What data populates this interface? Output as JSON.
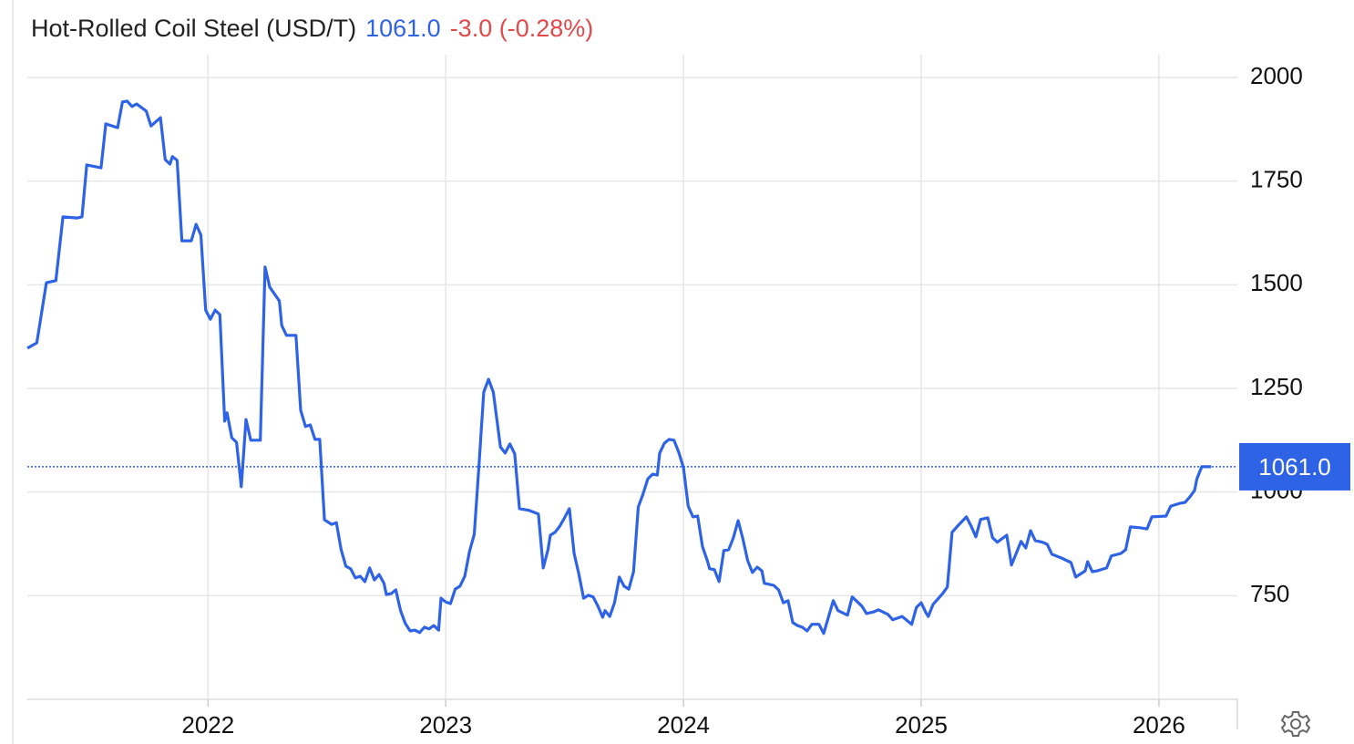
{
  "chart_data": {
    "type": "line",
    "title": "Hot-Rolled Coil Steel (USD/T)",
    "change": "-3.0 (-0.28%)",
    "last_value": {
      "value": 1061,
      "label": "1061.0"
    },
    "xlim": [
      2021.24,
      2026.33
    ],
    "ylim": [
      500,
      2055
    ],
    "xticks": [
      2022,
      2023,
      2024,
      2025,
      2026
    ],
    "yticks": [
      750,
      1000,
      1250,
      1500,
      1750,
      2000
    ],
    "grid": true,
    "series": [
      {
        "color": "#2f63e6",
        "x": [
          2021.24,
          2021.28,
          2021.32,
          2021.36,
          2021.39,
          2021.45,
          2021.47,
          2021.49,
          2021.55,
          2021.57,
          2021.62,
          2021.64,
          2021.66,
          2021.68,
          2021.7,
          2021.74,
          2021.76,
          2021.8,
          2021.82,
          2021.84,
          2021.85,
          2021.87,
          2021.89,
          2021.93,
          2021.95,
          2021.97,
          2021.99,
          2022.01,
          2022.03,
          2022.05,
          2022.07,
          2022.08,
          2022.1,
          2022.12,
          2022.14,
          2022.16,
          2022.18,
          2022.22,
          2022.24,
          2022.26,
          2022.3,
          2022.31,
          2022.33,
          2022.37,
          2022.39,
          2022.41,
          2022.43,
          2022.45,
          2022.47,
          2022.49,
          2022.52,
          2022.54,
          2022.56,
          2022.58,
          2022.6,
          2022.62,
          2022.64,
          2022.66,
          2022.68,
          2022.7,
          2022.72,
          2022.74,
          2022.75,
          2022.77,
          2022.79,
          2022.81,
          2022.83,
          2022.85,
          2022.87,
          2022.89,
          2022.91,
          2022.93,
          2022.95,
          2022.97,
          2022.98,
          2023.0,
          2023.02,
          2023.04,
          2023.06,
          2023.08,
          2023.1,
          2023.12,
          2023.14,
          2023.16,
          2023.18,
          2023.2,
          2023.21,
          2023.23,
          2023.25,
          2023.27,
          2023.29,
          2023.31,
          2023.35,
          2023.39,
          2023.41,
          2023.43,
          2023.44,
          2023.46,
          2023.48,
          2023.5,
          2023.52,
          2023.54,
          2023.56,
          2023.58,
          2023.6,
          2023.62,
          2023.64,
          2023.66,
          2023.67,
          2023.69,
          2023.71,
          2023.73,
          2023.75,
          2023.77,
          2023.79,
          2023.81,
          2023.83,
          2023.85,
          2023.87,
          2023.89,
          2023.9,
          2023.92,
          2023.94,
          2023.96,
          2023.98,
          2024.0,
          2024.02,
          2024.04,
          2024.06,
          2024.08,
          2024.1,
          2024.11,
          2024.13,
          2024.15,
          2024.17,
          2024.19,
          2024.21,
          2024.23,
          2024.25,
          2024.27,
          2024.29,
          2024.31,
          2024.33,
          2024.34,
          2024.38,
          2024.4,
          2024.42,
          2024.44,
          2024.46,
          2024.48,
          2024.5,
          2024.52,
          2024.54,
          2024.57,
          2024.59,
          2024.63,
          2024.65,
          2024.69,
          2024.71,
          2024.75,
          2024.77,
          2024.8,
          2024.82,
          2024.86,
          2024.88,
          2024.92,
          2024.96,
          2024.98,
          2025.0,
          2025.02,
          2025.03,
          2025.05,
          2025.09,
          2025.11,
          2025.13,
          2025.15,
          2025.19,
          2025.21,
          2025.23,
          2025.25,
          2025.28,
          2025.3,
          2025.32,
          2025.36,
          2025.38,
          2025.42,
          2025.44,
          2025.46,
          2025.48,
          2025.51,
          2025.53,
          2025.55,
          2025.59,
          2025.63,
          2025.65,
          2025.69,
          2025.7,
          2025.72,
          2025.74,
          2025.78,
          2025.8,
          2025.84,
          2025.86,
          2025.88,
          2025.92,
          2025.95,
          2025.97,
          2026.03,
          2026.05,
          2026.09,
          2026.11,
          2026.13,
          2026.15,
          2026.16,
          2026.18,
          2026.22
        ],
        "values": [
          1347,
          1360,
          1505,
          1510,
          1664,
          1661,
          1664,
          1789,
          1782,
          1888,
          1879,
          1941,
          1943,
          1930,
          1936,
          1919,
          1883,
          1903,
          1802,
          1791,
          1809,
          1800,
          1606,
          1606,
          1646,
          1620,
          1439,
          1417,
          1439,
          1428,
          1171,
          1191,
          1131,
          1120,
          1013,
          1175,
          1125,
          1125,
          1543,
          1494,
          1461,
          1402,
          1378,
          1378,
          1197,
          1158,
          1162,
          1127,
          1127,
          933,
          922,
          926,
          861,
          821,
          815,
          793,
          797,
          784,
          817,
          788,
          801,
          780,
          753,
          755,
          764,
          714,
          683,
          665,
          667,
          661,
          674,
          670,
          678,
          667,
          744,
          735,
          731,
          766,
          773,
          797,
          857,
          898,
          1065,
          1241,
          1272,
          1241,
          1197,
          1109,
          1094,
          1116,
          1092,
          960,
          956,
          947,
          817,
          861,
          896,
          903,
          918,
          938,
          960,
          852,
          802,
          744,
          751,
          747,
          725,
          698,
          714,
          700,
          733,
          795,
          773,
          766,
          808,
          964,
          995,
          1032,
          1043,
          1041,
          1094,
          1118,
          1127,
          1125,
          1096,
          1059,
          966,
          940,
          942,
          868,
          835,
          815,
          813,
          784,
          859,
          861,
          890,
          931,
          887,
          835,
          806,
          819,
          810,
          780,
          775,
          764,
          733,
          738,
          685,
          678,
          674,
          665,
          681,
          681,
          659,
          738,
          714,
          703,
          747,
          725,
          707,
          711,
          716,
          705,
          692,
          700,
          681,
          722,
          733,
          709,
          700,
          729,
          755,
          771,
          903,
          916,
          940,
          918,
          892,
          934,
          938,
          890,
          879,
          896,
          824,
          881,
          865,
          907,
          883,
          879,
          874,
          850,
          841,
          830,
          795,
          810,
          832,
          808,
          810,
          817,
          846,
          852,
          861,
          916,
          914,
          911,
          940,
          942,
          966,
          973,
          975,
          988,
          1004,
          1032,
          1061,
          1061
        ]
      }
    ]
  }
}
